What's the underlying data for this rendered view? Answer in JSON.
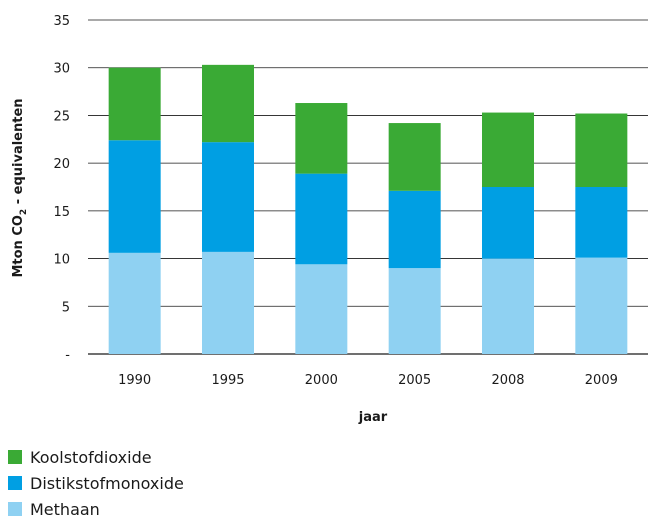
{
  "chart_data": {
    "type": "bar",
    "stacked": true,
    "categories": [
      "1990",
      "1995",
      "2000",
      "2005",
      "2008",
      "2009"
    ],
    "series": [
      {
        "name": "Methaan",
        "color": "#8fd1f2",
        "values": [
          10.6,
          10.7,
          9.4,
          9.0,
          10.0,
          10.1
        ]
      },
      {
        "name": "Distikstofmonoxide",
        "color": "#009fe3",
        "values": [
          11.8,
          11.5,
          9.5,
          8.1,
          7.5,
          7.4
        ]
      },
      {
        "name": "Koolstofdioxide",
        "color": "#3aaa35",
        "values": [
          7.6,
          8.1,
          7.4,
          7.1,
          7.8,
          7.7
        ]
      }
    ],
    "ylim": [
      0,
      35
    ],
    "yticks": [
      "-",
      "5",
      "10",
      "15",
      "20",
      "25",
      "30",
      "35"
    ],
    "xlabel": "jaar",
    "ylabel_main": "Mton CO",
    "ylabel_sub": "2",
    "ylabel_rest": " - equivalenten",
    "grid": true,
    "legend_position": "bottom-left"
  },
  "legend": [
    {
      "label": "Koolstofdioxide",
      "color": "#3aaa35"
    },
    {
      "label": "Distikstofmonoxide",
      "color": "#009fe3"
    },
    {
      "label": "Methaan",
      "color": "#8fd1f2"
    }
  ]
}
